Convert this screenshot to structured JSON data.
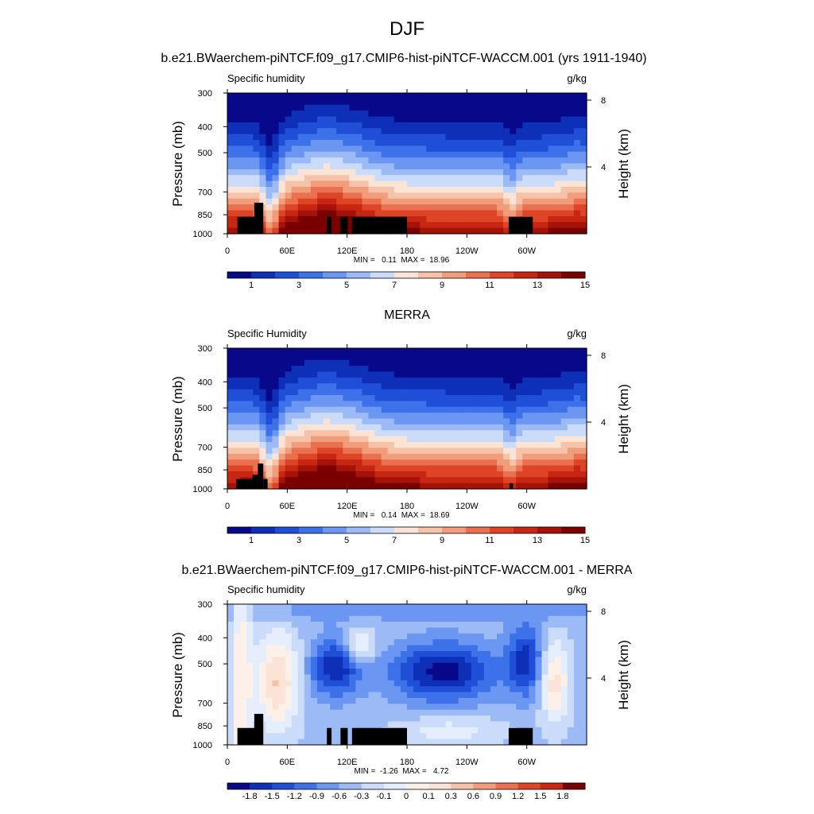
{
  "chart_data": {
    "title": "DJF",
    "panels": [
      {
        "type": "heatmap",
        "title": "b.e21.BWaerchem-piNTCF.f09_g17.CMIP6-hist-piNTCF-WACCM.001 (yrs 1911-1940)",
        "variable": "Specific humidity",
        "units": "g/kg",
        "ylabel": "Pressure (mb)",
        "ylabel_right": "Height (km)",
        "x_ticks": [
          "0",
          "60E",
          "120E",
          "180",
          "120W",
          "60W"
        ],
        "y_ticks": [
          "300",
          "400",
          "500",
          "700",
          "850",
          "1000"
        ],
        "height_ticks": [
          "8",
          "4"
        ],
        "stats": "MIN =   0.11  MAX =  18.96",
        "min": 0.11,
        "max": 18.96,
        "colorbar_labels": [
          "1",
          "3",
          "5",
          "7",
          "9",
          "11",
          "13",
          "15"
        ],
        "colors": [
          "#08088a",
          "#0e2fb8",
          "#1f4fd6",
          "#3d71ea",
          "#6b96f2",
          "#9cbaf6",
          "#cbdcfa",
          "#fbe4d6",
          "#f6c2a8",
          "#f19c7a",
          "#e97150",
          "#de4426",
          "#c72612",
          "#a51208",
          "#7a0000"
        ]
      },
      {
        "type": "heatmap",
        "title": "MERRA",
        "variable": "Specific Humidity",
        "units": "g/kg",
        "ylabel": "Pressure (mb)",
        "ylabel_right": "Height (km)",
        "x_ticks": [
          "0",
          "60E",
          "120E",
          "180",
          "120W",
          "60W"
        ],
        "y_ticks": [
          "300",
          "400",
          "500",
          "700",
          "850",
          "1000"
        ],
        "height_ticks": [
          "8",
          "4"
        ],
        "stats": "MIN =   0.14  MAX =  18.69",
        "min": 0.14,
        "max": 18.69,
        "colorbar_labels": [
          "1",
          "3",
          "5",
          "7",
          "9",
          "11",
          "13",
          "15"
        ],
        "colors": [
          "#08088a",
          "#0e2fb8",
          "#1f4fd6",
          "#3d71ea",
          "#6b96f2",
          "#9cbaf6",
          "#cbdcfa",
          "#fbe4d6",
          "#f6c2a8",
          "#f19c7a",
          "#e97150",
          "#de4426",
          "#c72612",
          "#a51208",
          "#7a0000"
        ]
      },
      {
        "type": "heatmap",
        "title": "b.e21.BWaerchem-piNTCF.f09_g17.CMIP6-hist-piNTCF-WACCM.001 - MERRA",
        "variable": "Specific humidity",
        "units": "g/kg",
        "ylabel": "Pressure (mb)",
        "ylabel_right": "Height (km)",
        "x_ticks": [
          "0",
          "60E",
          "120E",
          "180",
          "120W",
          "60W"
        ],
        "y_ticks": [
          "300",
          "400",
          "500",
          "700",
          "850",
          "1000"
        ],
        "height_ticks": [
          "8",
          "4"
        ],
        "stats": "MIN =  -1.26  MAX =   4.72",
        "min": -1.26,
        "max": 4.72,
        "colorbar_labels": [
          "-1.8",
          "-1.5",
          "-1.2",
          "-0.9",
          "-0.6",
          "-0.3",
          "-0.1",
          "0",
          "0.1",
          "0.3",
          "0.6",
          "0.9",
          "1.2",
          "1.5",
          "1.8"
        ],
        "colors": [
          "#08088a",
          "#0e2fb8",
          "#1f4fd6",
          "#3d71ea",
          "#6b96f2",
          "#9cbaf6",
          "#cbdcfa",
          "#e4eefc",
          "#fdf0e8",
          "#fbe4d6",
          "#f6c2a8",
          "#f19c7a",
          "#e97150",
          "#de4426",
          "#c72612",
          "#7a0000"
        ]
      }
    ]
  }
}
